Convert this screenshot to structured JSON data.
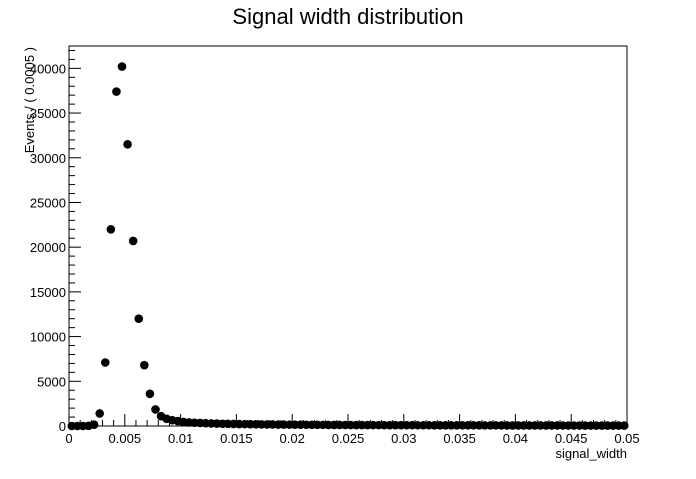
{
  "chart_data": {
    "type": "scatter",
    "title": "Signal width distribution",
    "xlabel": "signal_width",
    "ylabel": "Events / ( 0.0005 )",
    "xlim": [
      0,
      0.05
    ],
    "ylim": [
      0,
      42500
    ],
    "x_ticks": [
      0,
      0.005,
      0.01,
      0.015,
      0.02,
      0.025,
      0.03,
      0.035,
      0.04,
      0.045,
      0.05
    ],
    "x_tick_labels": [
      "0",
      "0.005",
      "0.01",
      "0.015",
      "0.02",
      "0.025",
      "0.03",
      "0.035",
      "0.04",
      "0.045",
      "0.05"
    ],
    "y_ticks": [
      0,
      5000,
      10000,
      15000,
      20000,
      25000,
      30000,
      35000,
      40000
    ],
    "y_tick_labels": [
      "0",
      "5000",
      "10000",
      "15000",
      "20000",
      "25000",
      "30000",
      "35000",
      "40000"
    ],
    "grid": false,
    "legend": "none",
    "marker_color": "#000000",
    "series": [
      {
        "x": [
          0.00025,
          0.00075,
          0.00125,
          0.00175,
          0.00225,
          0.00275,
          0.00325,
          0.00375,
          0.00425,
          0.00475,
          0.00525,
          0.00575,
          0.00625,
          0.00675,
          0.00725,
          0.00775,
          0.00825,
          0.00875,
          0.00925,
          0.00975,
          0.01025,
          0.01075,
          0.01125,
          0.01175,
          0.01225,
          0.01275,
          0.01325,
          0.01375,
          0.01425,
          0.01475,
          0.01525,
          0.01575,
          0.01625,
          0.01675,
          0.01725,
          0.01775,
          0.01825,
          0.01875,
          0.01925,
          0.01975,
          0.02025,
          0.02075,
          0.02125,
          0.02175,
          0.02225,
          0.02275,
          0.02325,
          0.02375,
          0.02425,
          0.02475,
          0.02525,
          0.02575,
          0.02625,
          0.02675,
          0.02725,
          0.02775,
          0.02825,
          0.02875,
          0.02925,
          0.02975,
          0.03025,
          0.03075,
          0.03125,
          0.03175,
          0.03225,
          0.03275,
          0.03325,
          0.03375,
          0.03425,
          0.03475,
          0.03525,
          0.03575,
          0.03625,
          0.03675,
          0.03725,
          0.03775,
          0.03825,
          0.03875,
          0.03925,
          0.03975,
          0.04025,
          0.04075,
          0.04125,
          0.04175,
          0.04225,
          0.04275,
          0.04325,
          0.04375,
          0.04425,
          0.04475,
          0.04525,
          0.04575,
          0.04625,
          0.04675,
          0.04725,
          0.04775,
          0.04825,
          0.04875,
          0.04925,
          0.04975
        ],
        "y": [
          0,
          0,
          0,
          20,
          150,
          1400,
          7100,
          22000,
          37400,
          40200,
          31500,
          20700,
          12000,
          6800,
          3600,
          1850,
          1100,
          800,
          650,
          550,
          450,
          400,
          370,
          340,
          310,
          290,
          270,
          250,
          240,
          230,
          220,
          210,
          200,
          190,
          180,
          175,
          170,
          165,
          160,
          155,
          150,
          145,
          140,
          135,
          130,
          125,
          120,
          118,
          115,
          112,
          110,
          108,
          105,
          103,
          100,
          98,
          96,
          94,
          92,
          90,
          88,
          86,
          85,
          84,
          82,
          80,
          79,
          78,
          77,
          76,
          75,
          74,
          73,
          72,
          71,
          70,
          69,
          68,
          67,
          66,
          65,
          64,
          63,
          62,
          61,
          60,
          59,
          58,
          57,
          56,
          55,
          54,
          53,
          52,
          51,
          50,
          49,
          48,
          47,
          46
        ]
      }
    ]
  }
}
